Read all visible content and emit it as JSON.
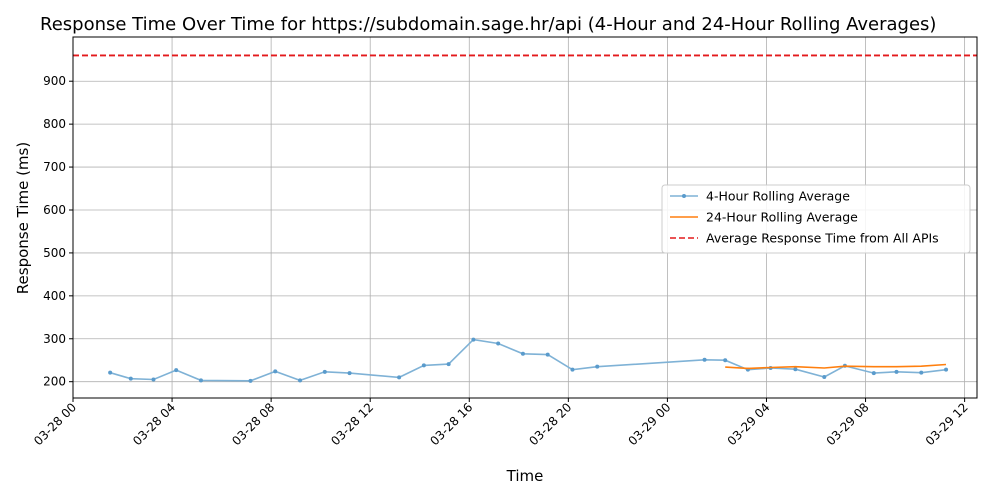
{
  "chart_data": {
    "type": "line",
    "title": "Response Time Over Time for https://subdomain.sage.hr/api (4-Hour and 24-Hour Rolling Averages)",
    "xlabel": "Time",
    "ylabel": "Response Time (ms)",
    "ylim": [
      162,
      1003
    ],
    "yticks": [
      200,
      300,
      400,
      500,
      600,
      700,
      800,
      900
    ],
    "xlim": [
      "03-28 00:00",
      "03-29 12:30"
    ],
    "xticks": [
      "03-28 00",
      "03-28 04",
      "03-28 08",
      "03-28 12",
      "03-28 16",
      "03-28 20",
      "03-29 00",
      "03-29 04",
      "03-29 08",
      "03-29 12"
    ],
    "grid": true,
    "legend_position": "center-right",
    "series": [
      {
        "name": "4-Hour Rolling Average",
        "color": "#7fb2d6",
        "marker": "dot",
        "x": [
          "03-28 01:30",
          "03-28 02:20",
          "03-28 03:15",
          "03-28 04:10",
          "03-28 05:10",
          "03-28 07:10",
          "03-28 08:10",
          "03-28 09:10",
          "03-28 10:10",
          "03-28 11:10",
          "03-28 13:10",
          "03-28 14:10",
          "03-28 15:10",
          "03-28 16:10",
          "03-28 17:10",
          "03-28 18:10",
          "03-28 19:10",
          "03-28 20:10",
          "03-28 21:10",
          "03-29 01:30",
          "03-29 02:20",
          "03-29 03:15",
          "03-29 04:10",
          "03-29 05:10",
          "03-29 06:20",
          "03-29 07:10",
          "03-29 08:20",
          "03-29 09:15",
          "03-29 10:15",
          "03-29 11:15"
        ],
        "values": [
          221,
          207,
          205,
          227,
          203,
          202,
          224,
          203,
          223,
          220,
          210,
          238,
          241,
          298,
          289,
          265,
          263,
          228,
          235,
          251,
          250,
          228,
          232,
          229,
          211,
          237,
          220,
          223,
          221,
          228
        ]
      },
      {
        "name": "24-Hour Rolling Average",
        "color": "#ff7f0e",
        "x": [
          "03-29 02:20",
          "03-29 03:15",
          "03-29 04:10",
          "03-29 05:10",
          "03-29 06:20",
          "03-29 07:10",
          "03-29 08:20",
          "03-29 09:15",
          "03-29 10:15",
          "03-29 11:15"
        ],
        "values": [
          234,
          231,
          233,
          235,
          232,
          236,
          235,
          235,
          236,
          240
        ]
      }
    ],
    "reference_line": {
      "name": "Average Response Time from All APIs",
      "value": 960,
      "color": "#e31a1c",
      "style": "dashed"
    }
  }
}
